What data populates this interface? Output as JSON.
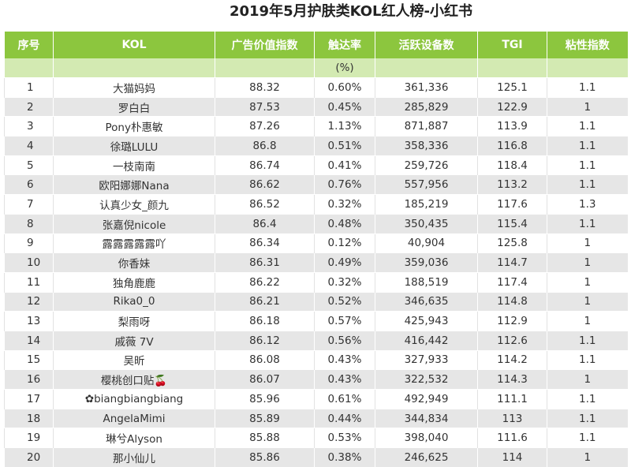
{
  "title": "2019年5月护肤类KOL红人榜-小红书",
  "table": {
    "header": [
      "序号",
      "KOL",
      "广告价值指数",
      "触达率",
      "活跃设备数",
      "TGI",
      "粘性指数"
    ],
    "unit_row": [
      "(%)"
    ],
    "rows": [
      [
        "1",
        "大猫妈妈",
        "88.32",
        "0.60%",
        "361,336",
        "125.1",
        "1.1"
      ],
      [
        "2",
        "罗白白",
        "87.53",
        "0.45%",
        "285,829",
        "122.9",
        "1"
      ],
      [
        "3",
        "Pony朴惠敏",
        "87.26",
        "1.13%",
        "871,887",
        "113.9",
        "1.1"
      ],
      [
        "4",
        "徐璐LULU",
        "86.8",
        "0.51%",
        "358,336",
        "116.8",
        "1.1"
      ],
      [
        "5",
        "一枝南南",
        "86.74",
        "0.41%",
        "259,726",
        "118.4",
        "1.1"
      ],
      [
        "6",
        "欧阳娜娜Nana",
        "86.62",
        "0.76%",
        "557,956",
        "113.2",
        "1.1"
      ],
      [
        "7",
        "认真少女_颜九",
        "86.52",
        "0.32%",
        "185,219",
        "117.6",
        "1.3"
      ],
      [
        "8",
        "张嘉倪nicole",
        "86.4",
        "0.48%",
        "350,435",
        "115.4",
        "1.1"
      ],
      [
        "9",
        "露露露露露吖",
        "86.34",
        "0.12%",
        "40,904",
        "125.8",
        "1"
      ],
      [
        "10",
        "你香妹",
        "86.31",
        "0.49%",
        "359,036",
        "114.7",
        "1"
      ],
      [
        "11",
        "独角鹿鹿",
        "86.22",
        "0.32%",
        "188,519",
        "117.4",
        "1"
      ],
      [
        "12",
        "Rika0_0",
        "86.21",
        "0.52%",
        "346,635",
        "114.8",
        "1"
      ],
      [
        "13",
        "梨雨呀",
        "86.18",
        "0.57%",
        "425,943",
        "112.9",
        "1"
      ],
      [
        "14",
        "戚薇 7V",
        "86.12",
        "0.56%",
        "416,442",
        "112.6",
        "1.1"
      ],
      [
        "15",
        "吴昕",
        "86.08",
        "0.43%",
        "327,933",
        "114.2",
        "1.1"
      ],
      [
        "16",
        "樱桃创口贴🍒",
        "86.07",
        "0.43%",
        "322,532",
        "114.3",
        "1"
      ],
      [
        "17",
        "✿biangbiangbiang",
        "85.96",
        "0.61%",
        "492,949",
        "111.1",
        "1.1"
      ],
      [
        "18",
        "AngelaMimi",
        "85.89",
        "0.44%",
        "344,834",
        "113",
        "1.1"
      ],
      [
        "19",
        "琳兮Alyson",
        "85.88",
        "0.53%",
        "398,040",
        "111.6",
        "1.1"
      ],
      [
        "20",
        "那小仙儿",
        "85.86",
        "0.38%",
        "246,625",
        "114",
        "1"
      ]
    ]
  }
}
